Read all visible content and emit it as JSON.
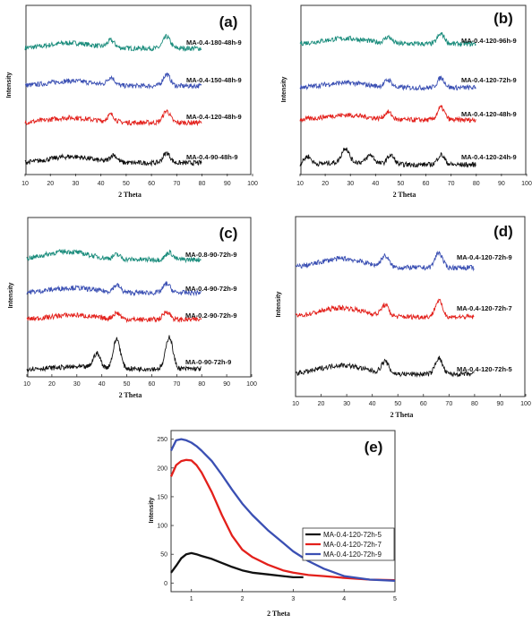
{
  "chart_data": [
    {
      "panel": "(a)",
      "type": "line",
      "xlabel": "2 Theta",
      "ylabel": "Intensity",
      "xlim": [
        10,
        100
      ],
      "xticks": [
        "10",
        "20",
        "30",
        "40",
        "50",
        "60",
        "70",
        "80",
        "90",
        "100"
      ],
      "grid": false,
      "series": [
        {
          "name": "MA-0.4-180-48h-9",
          "color": "#1a8c7c",
          "x_range": [
            10,
            80
          ],
          "peaks": [
            {
              "x": 44,
              "h": 0.8
            },
            {
              "x": 66,
              "h": 1.3
            }
          ],
          "broad_hump": {
            "x": 28,
            "h": 0.6
          }
        },
        {
          "name": "MA-0.4-150-48h-9",
          "color": "#3a4fb3",
          "x_range": [
            10,
            80
          ],
          "peaks": [
            {
              "x": 44,
              "h": 0.9
            },
            {
              "x": 66,
              "h": 1.3
            }
          ],
          "broad_hump": {
            "x": 28,
            "h": 0.55
          }
        },
        {
          "name": "MA-0.4-120-48h-9",
          "color": "#e3201b",
          "x_range": [
            10,
            80
          ],
          "peaks": [
            {
              "x": 44,
              "h": 0.8
            },
            {
              "x": 66,
              "h": 1.3
            }
          ],
          "broad_hump": {
            "x": 28,
            "h": 0.55
          }
        },
        {
          "name": "MA-0.4-90-48h-9",
          "color": "#111111",
          "x_range": [
            10,
            80
          ],
          "peaks": [
            {
              "x": 45,
              "h": 0.8
            },
            {
              "x": 66,
              "h": 1.1
            }
          ],
          "broad_hump": {
            "x": 28,
            "h": 0.7
          }
        }
      ]
    },
    {
      "panel": "(b)",
      "type": "line",
      "xlabel": "2 Theta",
      "ylabel": "Intensity",
      "xlim": [
        10,
        100
      ],
      "xticks": [
        "10",
        "20",
        "30",
        "40",
        "50",
        "60",
        "70",
        "80",
        "90",
        "100"
      ],
      "grid": false,
      "series": [
        {
          "name": "MA-0.4-120-96h-9",
          "color": "#1a8c7c",
          "x_range": [
            10,
            80
          ],
          "peaks": [
            {
              "x": 45,
              "h": 0.7
            },
            {
              "x": 66,
              "h": 1.1
            }
          ],
          "broad_hump": {
            "x": 28,
            "h": 0.6
          }
        },
        {
          "name": "MA-0.4-120-72h-9",
          "color": "#3a4fb3",
          "x_range": [
            10,
            80
          ],
          "peaks": [
            {
              "x": 45,
              "h": 0.8
            },
            {
              "x": 66,
              "h": 1.1
            }
          ],
          "broad_hump": {
            "x": 28,
            "h": 0.55
          }
        },
        {
          "name": "MA-0.4-120-48h-9",
          "color": "#e3201b",
          "x_range": [
            10,
            80
          ],
          "peaks": [
            {
              "x": 45,
              "h": 0.8
            },
            {
              "x": 66,
              "h": 1.4
            }
          ],
          "broad_hump": {
            "x": 28,
            "h": 0.55
          }
        },
        {
          "name": "MA-0.4-120-24h-9",
          "color": "#111111",
          "x_range": [
            10,
            80
          ],
          "peaks": [
            {
              "x": 13,
              "h": 0.9
            },
            {
              "x": 28,
              "h": 1.6
            },
            {
              "x": 38,
              "h": 0.9
            },
            {
              "x": 46,
              "h": 1.0
            },
            {
              "x": 66,
              "h": 1.1
            }
          ],
          "broad_hump": {
            "x": 30,
            "h": 0.3
          }
        }
      ]
    },
    {
      "panel": "(c)",
      "type": "line",
      "xlabel": "2 Theta",
      "ylabel": "Intensity",
      "xlim": [
        10,
        100
      ],
      "xticks": [
        "10",
        "20",
        "30",
        "40",
        "50",
        "60",
        "70",
        "80",
        "90",
        "100"
      ],
      "grid": false,
      "series": [
        {
          "name": "MA-0.8-90-72h-9",
          "color": "#1a8c7c",
          "x_range": [
            10,
            80
          ],
          "peaks": [
            {
              "x": 46,
              "h": 0.5
            },
            {
              "x": 67,
              "h": 0.8
            }
          ],
          "broad_hump": {
            "x": 26,
            "h": 0.9
          }
        },
        {
          "name": "MA-0.4-90-72h-9",
          "color": "#3a4fb3",
          "x_range": [
            10,
            80
          ],
          "peaks": [
            {
              "x": 46,
              "h": 0.8
            },
            {
              "x": 66,
              "h": 1.0
            }
          ],
          "broad_hump": {
            "x": 28,
            "h": 0.55
          }
        },
        {
          "name": "MA-0.2-90-72h-9",
          "color": "#e3201b",
          "x_range": [
            10,
            80
          ],
          "peaks": [
            {
              "x": 46,
              "h": 0.7
            },
            {
              "x": 66,
              "h": 0.9
            }
          ],
          "broad_hump": {
            "x": 28,
            "h": 0.5
          }
        },
        {
          "name": "MA-0-90-72h-9",
          "color": "#111111",
          "x_range": [
            10,
            80
          ],
          "peaks": [
            {
              "x": 38,
              "h": 1.6
            },
            {
              "x": 46,
              "h": 3.3
            },
            {
              "x": 67,
              "h": 3.6
            }
          ],
          "broad_hump": {
            "x": 30,
            "h": 0.2
          }
        }
      ]
    },
    {
      "panel": "(d)",
      "type": "line",
      "xlabel": "2 Theta",
      "ylabel": "Intensity",
      "xlim": [
        10,
        100
      ],
      "xticks": [
        "10",
        "20",
        "30",
        "40",
        "50",
        "60",
        "70",
        "80",
        "90",
        "100"
      ],
      "grid": false,
      "series": [
        {
          "name": "MA-0.4-120-72h-9",
          "color": "#3a4fb3",
          "x_range": [
            10,
            80
          ],
          "peaks": [
            {
              "x": 45,
              "h": 1.2
            },
            {
              "x": 66,
              "h": 1.7
            }
          ],
          "broad_hump": {
            "x": 28,
            "h": 1.0
          }
        },
        {
          "name": "MA-0.4-120-72h-7",
          "color": "#e3201b",
          "x_range": [
            10,
            80
          ],
          "peaks": [
            {
              "x": 45,
              "h": 1.2
            },
            {
              "x": 66,
              "h": 1.8
            }
          ],
          "broad_hump": {
            "x": 28,
            "h": 1.0
          }
        },
        {
          "name": "MA-0.4-120-72h-5",
          "color": "#111111",
          "x_range": [
            10,
            80
          ],
          "peaks": [
            {
              "x": 45,
              "h": 1.3
            },
            {
              "x": 66,
              "h": 1.8
            }
          ],
          "broad_hump": {
            "x": 28,
            "h": 1.0
          }
        }
      ]
    },
    {
      "panel": "(e)",
      "type": "line",
      "xlabel": "2 Theta",
      "ylabel": "Intensity",
      "xlim": [
        0.6,
        5
      ],
      "ylim": [
        -15,
        265
      ],
      "xticks": [
        "1",
        "2",
        "3",
        "4",
        "5"
      ],
      "yticks": [
        "0",
        "50",
        "100",
        "150",
        "200",
        "250"
      ],
      "legend": "center-right",
      "grid": false,
      "series": [
        {
          "name": "MA-0.4-120-72h-5",
          "color": "#111111",
          "x": [
            0.6,
            0.7,
            0.8,
            0.9,
            1.0,
            1.1,
            1.2,
            1.4,
            1.6,
            1.8,
            2.0,
            2.2,
            2.5,
            2.8,
            3.0,
            3.2
          ],
          "y": [
            18,
            30,
            43,
            50,
            52,
            50,
            47,
            42,
            35,
            28,
            22,
            18,
            15,
            12,
            10,
            10
          ]
        },
        {
          "name": "MA-0.4-120-72h-7",
          "color": "#e3201b",
          "x": [
            0.6,
            0.7,
            0.8,
            0.9,
            1.0,
            1.1,
            1.2,
            1.4,
            1.6,
            1.8,
            2.0,
            2.2,
            2.5,
            2.8,
            3.0,
            3.3,
            3.6,
            4.0,
            4.5,
            5.0
          ],
          "y": [
            185,
            205,
            212,
            214,
            213,
            205,
            192,
            158,
            118,
            82,
            58,
            45,
            32,
            22,
            18,
            14,
            12,
            9,
            6,
            5
          ]
        },
        {
          "name": "MA-0.4-120-72h-9",
          "color": "#3a4fb3",
          "x": [
            0.6,
            0.7,
            0.8,
            0.9,
            1.0,
            1.1,
            1.2,
            1.4,
            1.6,
            1.8,
            2.0,
            2.2,
            2.5,
            2.8,
            3.0,
            3.3,
            3.6,
            4.0,
            4.5,
            5.0
          ],
          "y": [
            230,
            248,
            250,
            248,
            244,
            238,
            230,
            212,
            188,
            162,
            138,
            118,
            92,
            70,
            55,
            38,
            25,
            12,
            6,
            4
          ]
        }
      ]
    }
  ]
}
